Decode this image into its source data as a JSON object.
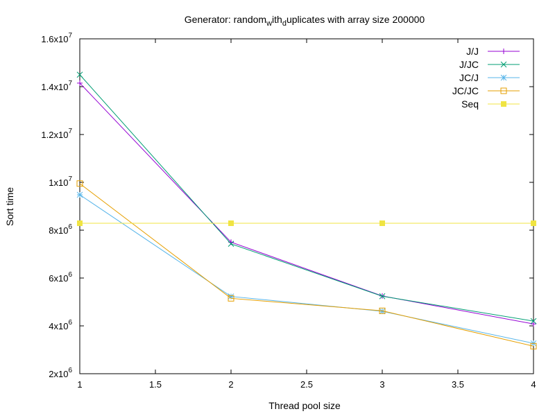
{
  "chart_data": {
    "type": "line",
    "title_parts": [
      "Generator: random",
      "w",
      "ith",
      "d",
      "uplicates with array size 200000"
    ],
    "xlabel": "Thread pool size",
    "ylabel": "Sort time",
    "xlim": [
      1,
      4
    ],
    "ylim": [
      2000000,
      16000000
    ],
    "x_ticks": [
      {
        "value": 1,
        "label": "1"
      },
      {
        "value": 1.5,
        "label": "1.5"
      },
      {
        "value": 2,
        "label": "2"
      },
      {
        "value": 2.5,
        "label": "2.5"
      },
      {
        "value": 3,
        "label": "3"
      },
      {
        "value": 3.5,
        "label": "3.5"
      },
      {
        "value": 4,
        "label": "4"
      }
    ],
    "y_ticks": [
      {
        "value": 2000000,
        "mantissa": "2x10",
        "exp": "6"
      },
      {
        "value": 4000000,
        "mantissa": "4x10",
        "exp": "6"
      },
      {
        "value": 6000000,
        "mantissa": "6x10",
        "exp": "6"
      },
      {
        "value": 8000000,
        "mantissa": "8x10",
        "exp": "6"
      },
      {
        "value": 10000000,
        "mantissa": "1x10",
        "exp": "7"
      },
      {
        "value": 12000000,
        "mantissa": "1.2x10",
        "exp": "7"
      },
      {
        "value": 14000000,
        "mantissa": "1.4x10",
        "exp": "7"
      },
      {
        "value": 16000000,
        "mantissa": "1.6x10",
        "exp": "7"
      }
    ],
    "grid": false,
    "legend_position": "top-right",
    "x": [
      1,
      2,
      3,
      4
    ],
    "series": [
      {
        "name": "J/J",
        "color": "#9400d3",
        "marker": "plus",
        "values": [
          14150000,
          7500000,
          5250000,
          4080000
        ]
      },
      {
        "name": "J/JC",
        "color": "#009e73",
        "marker": "cross",
        "values": [
          14500000,
          7430000,
          5240000,
          4200000
        ]
      },
      {
        "name": "JC/J",
        "color": "#56b4e9",
        "marker": "star",
        "values": [
          9480000,
          5230000,
          4610000,
          3270000
        ]
      },
      {
        "name": "JC/JC",
        "color": "#e69f00",
        "marker": "square-open",
        "values": [
          9950000,
          5150000,
          4630000,
          3150000
        ]
      },
      {
        "name": "Seq",
        "color": "#f0e442",
        "marker": "square-filled",
        "values": [
          8290000,
          8290000,
          8290000,
          8290000
        ]
      }
    ]
  }
}
